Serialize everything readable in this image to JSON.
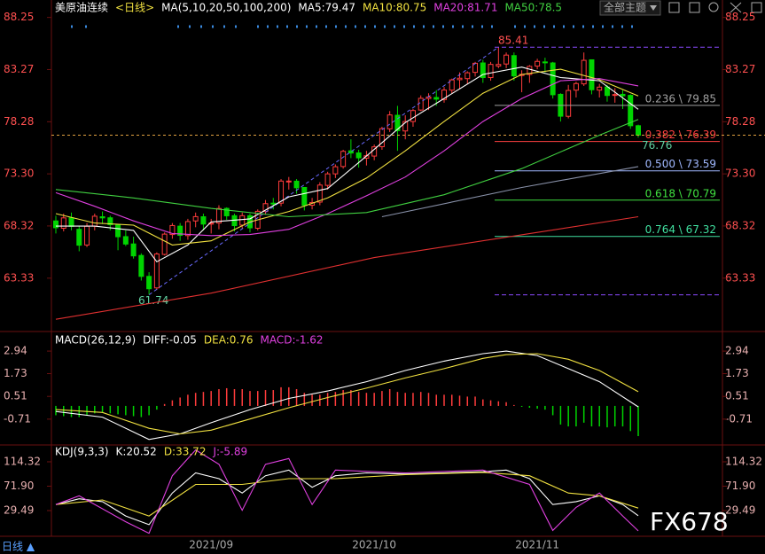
{
  "chart_data": [
    {
      "type": "candlestick",
      "title": "美原油连续",
      "period": "<日线>",
      "indicator": "MA(5,10,20,50,100,200)",
      "up_color": "#ff3c3c",
      "down_color": "#00d400",
      "categories": [
        null,
        null,
        null,
        null,
        null,
        null,
        null,
        null,
        null,
        null,
        null,
        null,
        null,
        null,
        null,
        null,
        null,
        null,
        null,
        null,
        "2021/09",
        null,
        null,
        null,
        null,
        null,
        null,
        null,
        null,
        null,
        null,
        null,
        null,
        null,
        null,
        null,
        null,
        null,
        null,
        null,
        null,
        "2021/10",
        null,
        null,
        null,
        null,
        null,
        null,
        null,
        null,
        null,
        null,
        null,
        null,
        null,
        null,
        null,
        null,
        null,
        null,
        null,
        null,
        "2021/11",
        null,
        null,
        null,
        null,
        null,
        null,
        null,
        null,
        null,
        null,
        null,
        null,
        null
      ],
      "open": [
        68.8,
        68.1,
        69.1,
        68.0,
        66.5,
        68.3,
        69.2,
        69.1,
        68.4,
        67.3,
        66.6,
        65.5,
        63.5,
        62.4,
        65.6,
        67.5,
        68.3,
        67.4,
        68.8,
        69.2,
        68.5,
        68.6,
        70.0,
        69.3,
        68.4,
        69.3,
        68.1,
        69.7,
        70.5,
        70.5,
        72.6,
        72.6,
        72.0,
        70.3,
        70.6,
        72.2,
        73.3,
        74.0,
        75.5,
        75.3,
        74.8,
        75.0,
        75.9,
        77.6,
        78.9,
        77.4,
        78.3,
        79.4,
        80.5,
        80.6,
        80.4,
        81.3,
        82.3,
        82.4,
        83.0,
        83.9,
        82.5,
        83.6,
        83.8,
        84.6,
        82.7,
        82.8,
        83.6,
        84.0,
        83.9,
        80.9,
        78.8,
        81.3,
        81.9,
        84.2,
        81.3,
        81.6,
        80.8,
        80.9,
        80.8,
        77.9
      ],
      "high": [
        69.3,
        69.5,
        69.6,
        68.3,
        68.6,
        69.5,
        69.7,
        69.3,
        68.5,
        67.9,
        67.3,
        65.7,
        63.9,
        65.8,
        67.7,
        68.6,
        68.6,
        69.0,
        69.6,
        69.5,
        69.0,
        70.3,
        70.1,
        69.5,
        69.6,
        69.5,
        69.9,
        70.8,
        71.0,
        72.8,
        73.0,
        72.8,
        72.0,
        71.0,
        72.5,
        73.5,
        74.2,
        75.6,
        76.6,
        75.6,
        75.5,
        76.1,
        77.8,
        79.3,
        79.8,
        78.9,
        79.5,
        80.8,
        81.0,
        81.3,
        81.6,
        82.4,
        83.0,
        83.1,
        84.0,
        84.2,
        84.0,
        85.41,
        84.9,
        84.9,
        83.2,
        83.7,
        84.3,
        84.4,
        84.0,
        81.0,
        81.8,
        82.1,
        84.9,
        84.2,
        81.9,
        81.8,
        81.5,
        81.3,
        80.9,
        78.0
      ],
      "low": [
        67.6,
        67.8,
        67.9,
        65.9,
        66.3,
        67.9,
        68.5,
        67.9,
        66.0,
        66.4,
        65.2,
        63.1,
        61.74,
        62.2,
        65.5,
        67.1,
        66.9,
        67.0,
        68.2,
        67.9,
        67.6,
        68.0,
        68.9,
        67.8,
        68.1,
        67.7,
        67.9,
        69.4,
        69.9,
        70.2,
        71.8,
        71.4,
        69.8,
        69.9,
        70.3,
        71.8,
        72.9,
        73.8,
        74.8,
        73.9,
        74.1,
        74.6,
        75.6,
        77.3,
        75.5,
        76.6,
        77.8,
        79.3,
        79.4,
        79.8,
        80.1,
        81.0,
        81.4,
        81.9,
        82.6,
        82.0,
        82.2,
        83.4,
        83.4,
        82.2,
        81.1,
        82.0,
        83.3,
        83.0,
        80.5,
        78.3,
        78.6,
        80.6,
        81.7,
        80.9,
        80.6,
        80.2,
        80.1,
        79.5,
        77.6,
        76.76
      ],
      "close": [
        68.15,
        69.09,
        68.28,
        66.48,
        68.29,
        69.25,
        69.09,
        68.44,
        67.29,
        66.59,
        65.46,
        63.5,
        62.32,
        65.64,
        67.54,
        68.36,
        67.42,
        68.74,
        69.21,
        68.5,
        68.59,
        69.99,
        69.29,
        68.35,
        69.3,
        68.14,
        69.72,
        70.45,
        70.46,
        72.61,
        72.61,
        71.97,
        70.29,
        70.56,
        72.23,
        73.3,
        73.98,
        75.45,
        75.29,
        74.83,
        75.03,
        75.88,
        77.62,
        78.93,
        77.43,
        78.3,
        79.35,
        80.52,
        80.64,
        80.44,
        81.31,
        82.28,
        82.44,
        82.96,
        83.87,
        82.5,
        83.76,
        83.76,
        84.65,
        82.66,
        82.81,
        83.57,
        84.05,
        83.91,
        80.86,
        78.81,
        81.27,
        81.93,
        84.15,
        81.34,
        81.59,
        80.79,
        80.88,
        80.76,
        77.9,
        77.0
      ],
      "series": [
        {
          "name": "MA5:79.47",
          "color": "#ffffff",
          "x": [
            0,
            5,
            10,
            13,
            17,
            20,
            25,
            30,
            35,
            40,
            45,
            50,
            55,
            60,
            65,
            70,
            75
          ],
          "values": [
            68.3,
            68.3,
            67.9,
            64.9,
            66.5,
            68.7,
            69.0,
            71.1,
            71.9,
            75.0,
            78.2,
            80.5,
            82.8,
            83.5,
            82.5,
            82.2,
            79.47
          ]
        },
        {
          "name": "MA10:80.75",
          "color": "#f0e040",
          "x": [
            0,
            5,
            10,
            15,
            20,
            25,
            30,
            35,
            40,
            45,
            50,
            55,
            60,
            65,
            70,
            75
          ],
          "values": [
            69.5,
            68.6,
            68.4,
            66.5,
            66.9,
            68.7,
            69.7,
            71.0,
            72.9,
            75.5,
            78.3,
            81.0,
            82.8,
            83.3,
            82.3,
            80.75
          ]
        },
        {
          "name": "MA20:81.71",
          "color": "#e040e0",
          "x": [
            0,
            5,
            10,
            15,
            20,
            25,
            30,
            35,
            40,
            45,
            50,
            55,
            60,
            65,
            70,
            75
          ],
          "values": [
            71.5,
            70.2,
            68.8,
            67.6,
            67.4,
            67.5,
            68.0,
            69.5,
            71.2,
            73.0,
            75.5,
            78.3,
            80.5,
            82.2,
            82.4,
            81.71
          ]
        },
        {
          "name": "MA50:78.5",
          "color": "#40d040",
          "x": [
            0,
            10,
            20,
            30,
            40,
            50,
            60,
            70,
            75
          ],
          "values": [
            71.8,
            71.0,
            70.0,
            69.2,
            69.6,
            71.3,
            73.8,
            77.0,
            78.5
          ]
        },
        {
          "color": "#8890a8",
          "x": [
            42,
            60,
            75
          ],
          "values": [
            69.2,
            72.0,
            74.0
          ]
        },
        {
          "color": "#e03030",
          "x": [
            0,
            20,
            41,
            62,
            75
          ],
          "values": [
            59.4,
            61.9,
            65.3,
            67.7,
            69.2
          ]
        }
      ],
      "fibonacci": {
        "high": 85.41,
        "low": 61.74,
        "levels": [
          {
            "value": 79.85,
            "label": "0.236 \\ 79.85",
            "color": "#a0a0a0"
          },
          {
            "value": 76.39,
            "label": "0.382 \\ 76.39",
            "color": "#ff4040"
          },
          {
            "value": 73.59,
            "label": "0.500 \\ 73.59",
            "color": "#a0b8ff"
          },
          {
            "value": 70.79,
            "label": "0.618 \\ 70.79",
            "color": "#40e040"
          },
          {
            "value": 67.32,
            "label": "0.764 \\ 67.32",
            "color": "#40e0a0"
          }
        ]
      },
      "ylim": [
        58.4,
        88.9
      ],
      "yticks": [
        88.25,
        83.27,
        78.28,
        {
          "value": 73.3,
          "label": "73.30"
        },
        68.32,
        63.33
      ]
    },
    {
      "type": "macd",
      "title": "MACD(26,12,9)",
      "values_name": "MACD:-1.62",
      "values_color": "#e040e0",
      "up_color": "#ff3c3c",
      "down_color": "#00d400",
      "values": [
        -0.5,
        -0.55,
        -0.6,
        -0.6,
        -0.5,
        -0.4,
        -0.35,
        -0.4,
        -0.45,
        -0.5,
        -0.55,
        -0.6,
        -0.5,
        -0.2,
        0.1,
        0.3,
        0.45,
        0.6,
        0.7,
        0.75,
        0.8,
        0.9,
        0.95,
        0.9,
        0.9,
        0.8,
        0.8,
        0.85,
        0.85,
        1.0,
        1.0,
        0.9,
        0.7,
        0.6,
        0.6,
        0.7,
        0.75,
        0.85,
        0.85,
        0.75,
        0.7,
        0.7,
        0.8,
        0.9,
        0.75,
        0.7,
        0.7,
        0.75,
        0.7,
        0.6,
        0.6,
        0.6,
        0.55,
        0.5,
        0.5,
        0.35,
        0.3,
        0.25,
        0.2,
        0.05,
        -0.05,
        -0.1,
        -0.15,
        -0.2,
        -0.5,
        -1.0,
        -1.1,
        -1.1,
        -0.9,
        -1.1,
        -1.1,
        -1.15,
        -1.1,
        -1.1,
        -1.35,
        -1.62
      ],
      "series": [
        {
          "name": "DIFF:-0.05",
          "color": "#ffffff",
          "x": [
            0,
            6,
            12,
            16,
            20,
            25,
            30,
            35,
            40,
            45,
            50,
            55,
            58,
            62,
            66,
            70,
            75
          ],
          "values": [
            -0.3,
            -0.6,
            -1.8,
            -1.5,
            -0.9,
            -0.2,
            0.4,
            0.8,
            1.3,
            1.9,
            2.4,
            2.8,
            2.94,
            2.7,
            2.0,
            1.3,
            -0.05
          ]
        },
        {
          "name": "DEA:0.76",
          "color": "#f0e040",
          "x": [
            0,
            6,
            12,
            16,
            20,
            25,
            30,
            35,
            40,
            45,
            50,
            55,
            58,
            62,
            66,
            70,
            75
          ],
          "values": [
            -0.2,
            -0.35,
            -1.2,
            -1.5,
            -1.3,
            -0.7,
            -0.1,
            0.45,
            0.95,
            1.5,
            2.0,
            2.55,
            2.75,
            2.8,
            2.5,
            1.9,
            0.76
          ]
        }
      ],
      "ylim": [
        -2.0,
        3.8
      ],
      "yticks": [
        2.94,
        1.73,
        0.51,
        -0.71
      ]
    },
    {
      "type": "line",
      "title": "KDJ(9,3,3)",
      "series": [
        {
          "name": "K:20.52",
          "color": "#ffffff",
          "x": [
            0,
            3,
            6,
            9,
            12,
            15,
            18,
            21,
            24,
            27,
            30,
            33,
            36,
            40,
            45,
            50,
            55,
            58,
            61,
            64,
            67,
            70,
            73,
            75
          ],
          "values": [
            40,
            50,
            45,
            20,
            5,
            60,
            95,
            85,
            60,
            90,
            100,
            70,
            90,
            95,
            93,
            95,
            97,
            100,
            85,
            40,
            45,
            55,
            40,
            20.52
          ]
        },
        {
          "name": "D:33.72",
          "color": "#f0e040",
          "x": [
            0,
            6,
            12,
            18,
            24,
            30,
            36,
            45,
            55,
            61,
            66,
            70,
            75
          ],
          "values": [
            40,
            48,
            20,
            75,
            75,
            85,
            85,
            92,
            96,
            90,
            60,
            55,
            33.72
          ]
        },
        {
          "name": "J:-5.89",
          "color": "#e040e0",
          "x": [
            0,
            3,
            9,
            12,
            15,
            18,
            21,
            24,
            27,
            30,
            33,
            36,
            45,
            55,
            61,
            64,
            67,
            70,
            73,
            75
          ],
          "values": [
            40,
            55,
            10,
            -10,
            90,
            135,
            110,
            30,
            110,
            120,
            40,
            100,
            95,
            100,
            75,
            -5,
            35,
            60,
            20,
            -5.89
          ]
        }
      ],
      "ylim": [
        -13.7,
        140.5
      ],
      "yticks": [
        114.32,
        {
          "value": 71.9,
          "label": "71.90"
        },
        29.49
      ]
    }
  ],
  "theme_selector": "全部主题",
  "period_button": "日线 ▲",
  "watermark": "FX678"
}
